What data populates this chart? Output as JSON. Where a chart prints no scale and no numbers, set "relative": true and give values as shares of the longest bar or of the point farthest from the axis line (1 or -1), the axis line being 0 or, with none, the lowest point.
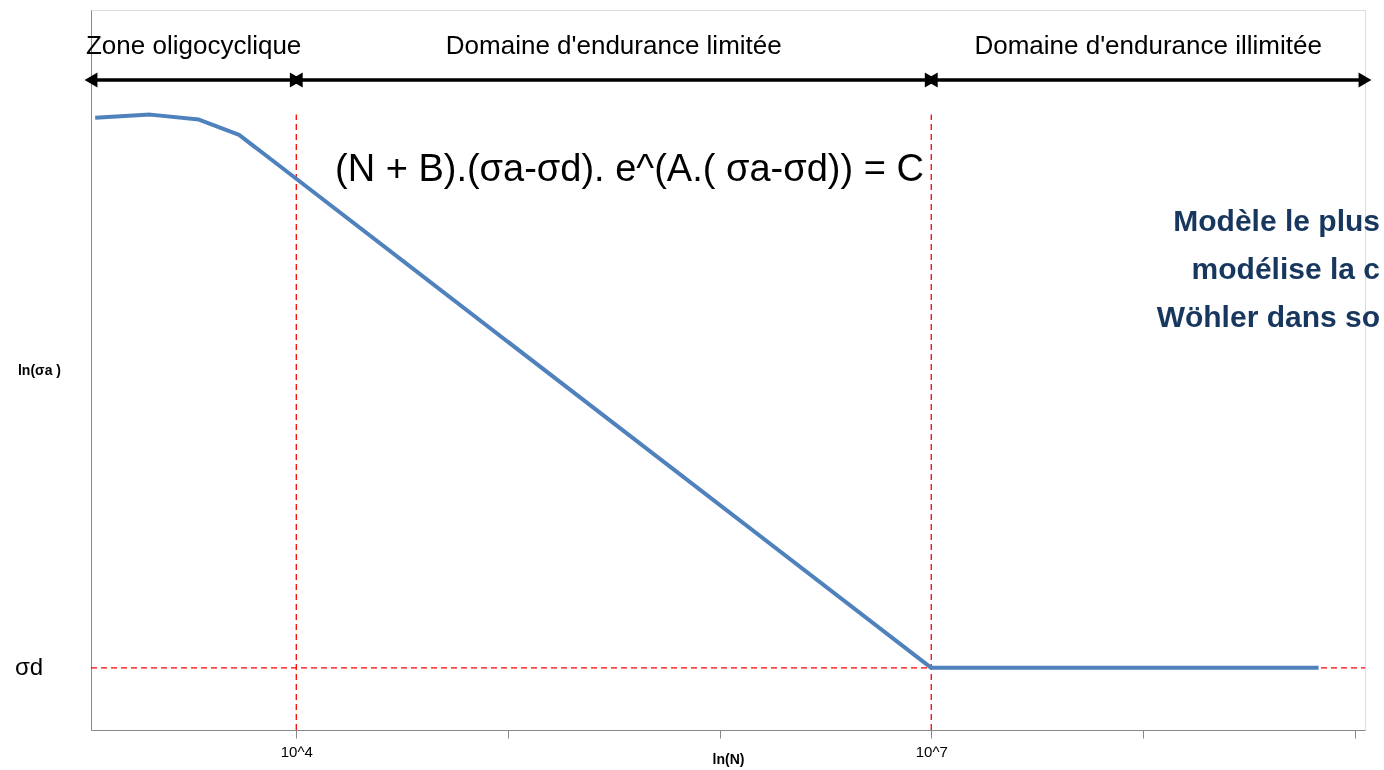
{
  "chart_data": {
    "type": "line",
    "relative": true,
    "log": "x",
    "xlabel": "ln(N)",
    "ylabel": "ln(σa )",
    "xlim": [
      1072,
      1120000000
    ],
    "xticks": [
      {
        "value": 10000,
        "label": "10^4"
      },
      {
        "value": 100000,
        "label": null
      },
      {
        "value": 1000000,
        "label": null
      },
      {
        "value": 10000000,
        "label": "10^7"
      },
      {
        "value": 100000000,
        "label": null
      },
      {
        "value": 1000000000,
        "label": null
      }
    ],
    "tick_labels": "x",
    "grid": false,
    "marker": "none",
    "line_style": "solid",
    "series": [
      {
        "color": "#4f81bd",
        "x": [
          1122,
          2042,
          3467,
          5370,
          9550,
          10000000,
          676000000
        ],
        "values": [
          0.995,
          1,
          0.992,
          0.967,
          0.901,
          0.101,
          0.101
        ]
      }
    ],
    "ref_lines": [
      {
        "axis": "y",
        "value": 0.101,
        "label": "σd",
        "color": "#ff0000",
        "line_style": "dashed"
      },
      {
        "axis": "x",
        "value": 10000,
        "color": "#ff0000",
        "line_style": "dashed"
      },
      {
        "axis": "x",
        "value": 10000000,
        "color": "#ff0000",
        "line_style": "dashed"
      }
    ],
    "annotations": [
      "Zone oligocyclique",
      "Domaine d'endurance limitée",
      "Domaine d'endurance illimitée",
      "(N + B).(σa-σd). e^(A.( σa-σd)) = C",
      "Modèle le plus",
      "modélise la c",
      "Wöhler dans so"
    ]
  }
}
